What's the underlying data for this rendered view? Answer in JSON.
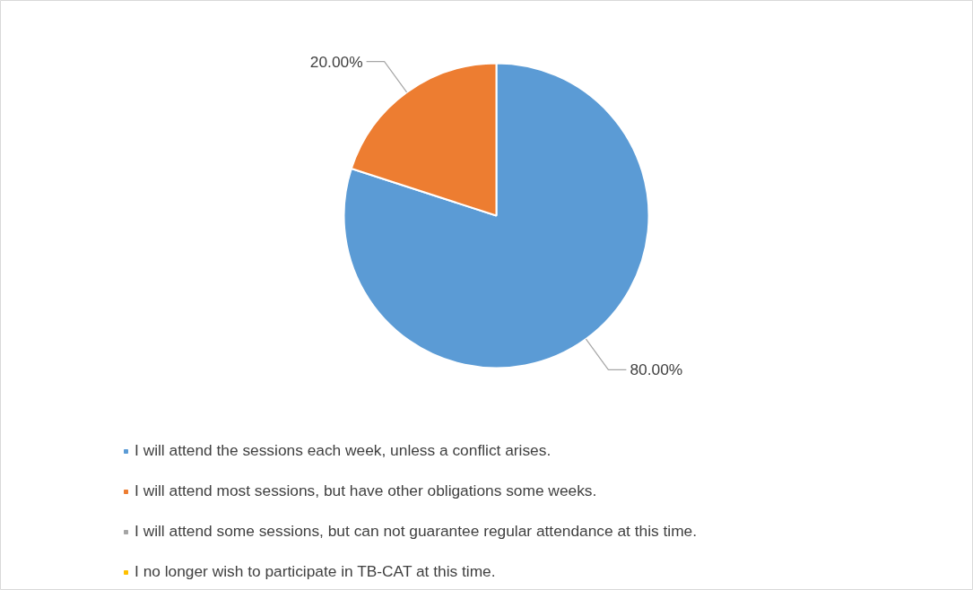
{
  "chart_data": {
    "type": "pie",
    "categories": [
      "I will attend the sessions each week, unless a conflict arises.",
      "I will attend most sessions, but have other obligations some weeks.",
      "I will attend some sessions, but can not guarantee regular attendance at this time.",
      "I no longer wish to participate in TB-CAT at this time."
    ],
    "values": [
      80,
      20,
      0,
      0
    ],
    "colors": [
      "#5b9bd5",
      "#ed7d31",
      "#a5a5a5",
      "#ffc000"
    ],
    "value_labels": [
      "80.00%",
      "20.00%",
      null,
      null
    ],
    "legend": "bottom"
  }
}
